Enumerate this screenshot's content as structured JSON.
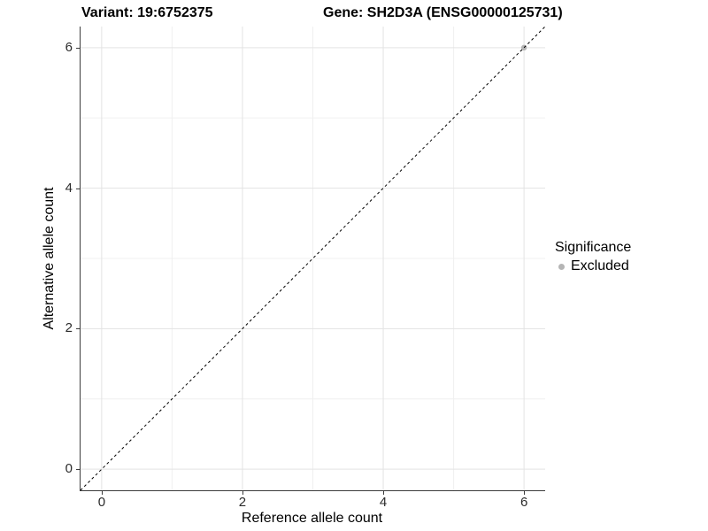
{
  "titles": {
    "variant": "Variant: 19:6752375",
    "gene": "Gene: SH2D3A (ENSG00000125731)"
  },
  "chart_data": {
    "type": "scatter",
    "title_left": "Variant: 19:6752375",
    "title_right": "Gene: SH2D3A (ENSG00000125731)",
    "xlabel": "Reference allele count",
    "ylabel": "Alternative allele count",
    "xlim": [
      -0.3,
      6.3
    ],
    "ylim": [
      -0.3,
      6.3
    ],
    "x_ticks": [
      0,
      2,
      4,
      6
    ],
    "y_ticks": [
      0,
      2,
      4,
      6
    ],
    "x_minor_grid": [
      1,
      3,
      5
    ],
    "y_minor_grid": [
      1,
      3,
      5
    ],
    "grid": true,
    "background_color": "#ffffff",
    "major_grid_color": "#e3e3e3",
    "minor_grid_color": "#f0f0f0",
    "axis_line_color": "#3c3c3c",
    "identity_line": {
      "equation": "y = x",
      "style": "dashed",
      "color": "#000000"
    },
    "series": [
      {
        "name": "Excluded",
        "color": "#b5b5b5",
        "points": [
          {
            "x": 6,
            "y": 6
          }
        ]
      }
    ],
    "legend": {
      "title": "Significance",
      "position": "right",
      "items": [
        {
          "label": "Excluded",
          "color": "#b5b5b5"
        }
      ]
    }
  }
}
